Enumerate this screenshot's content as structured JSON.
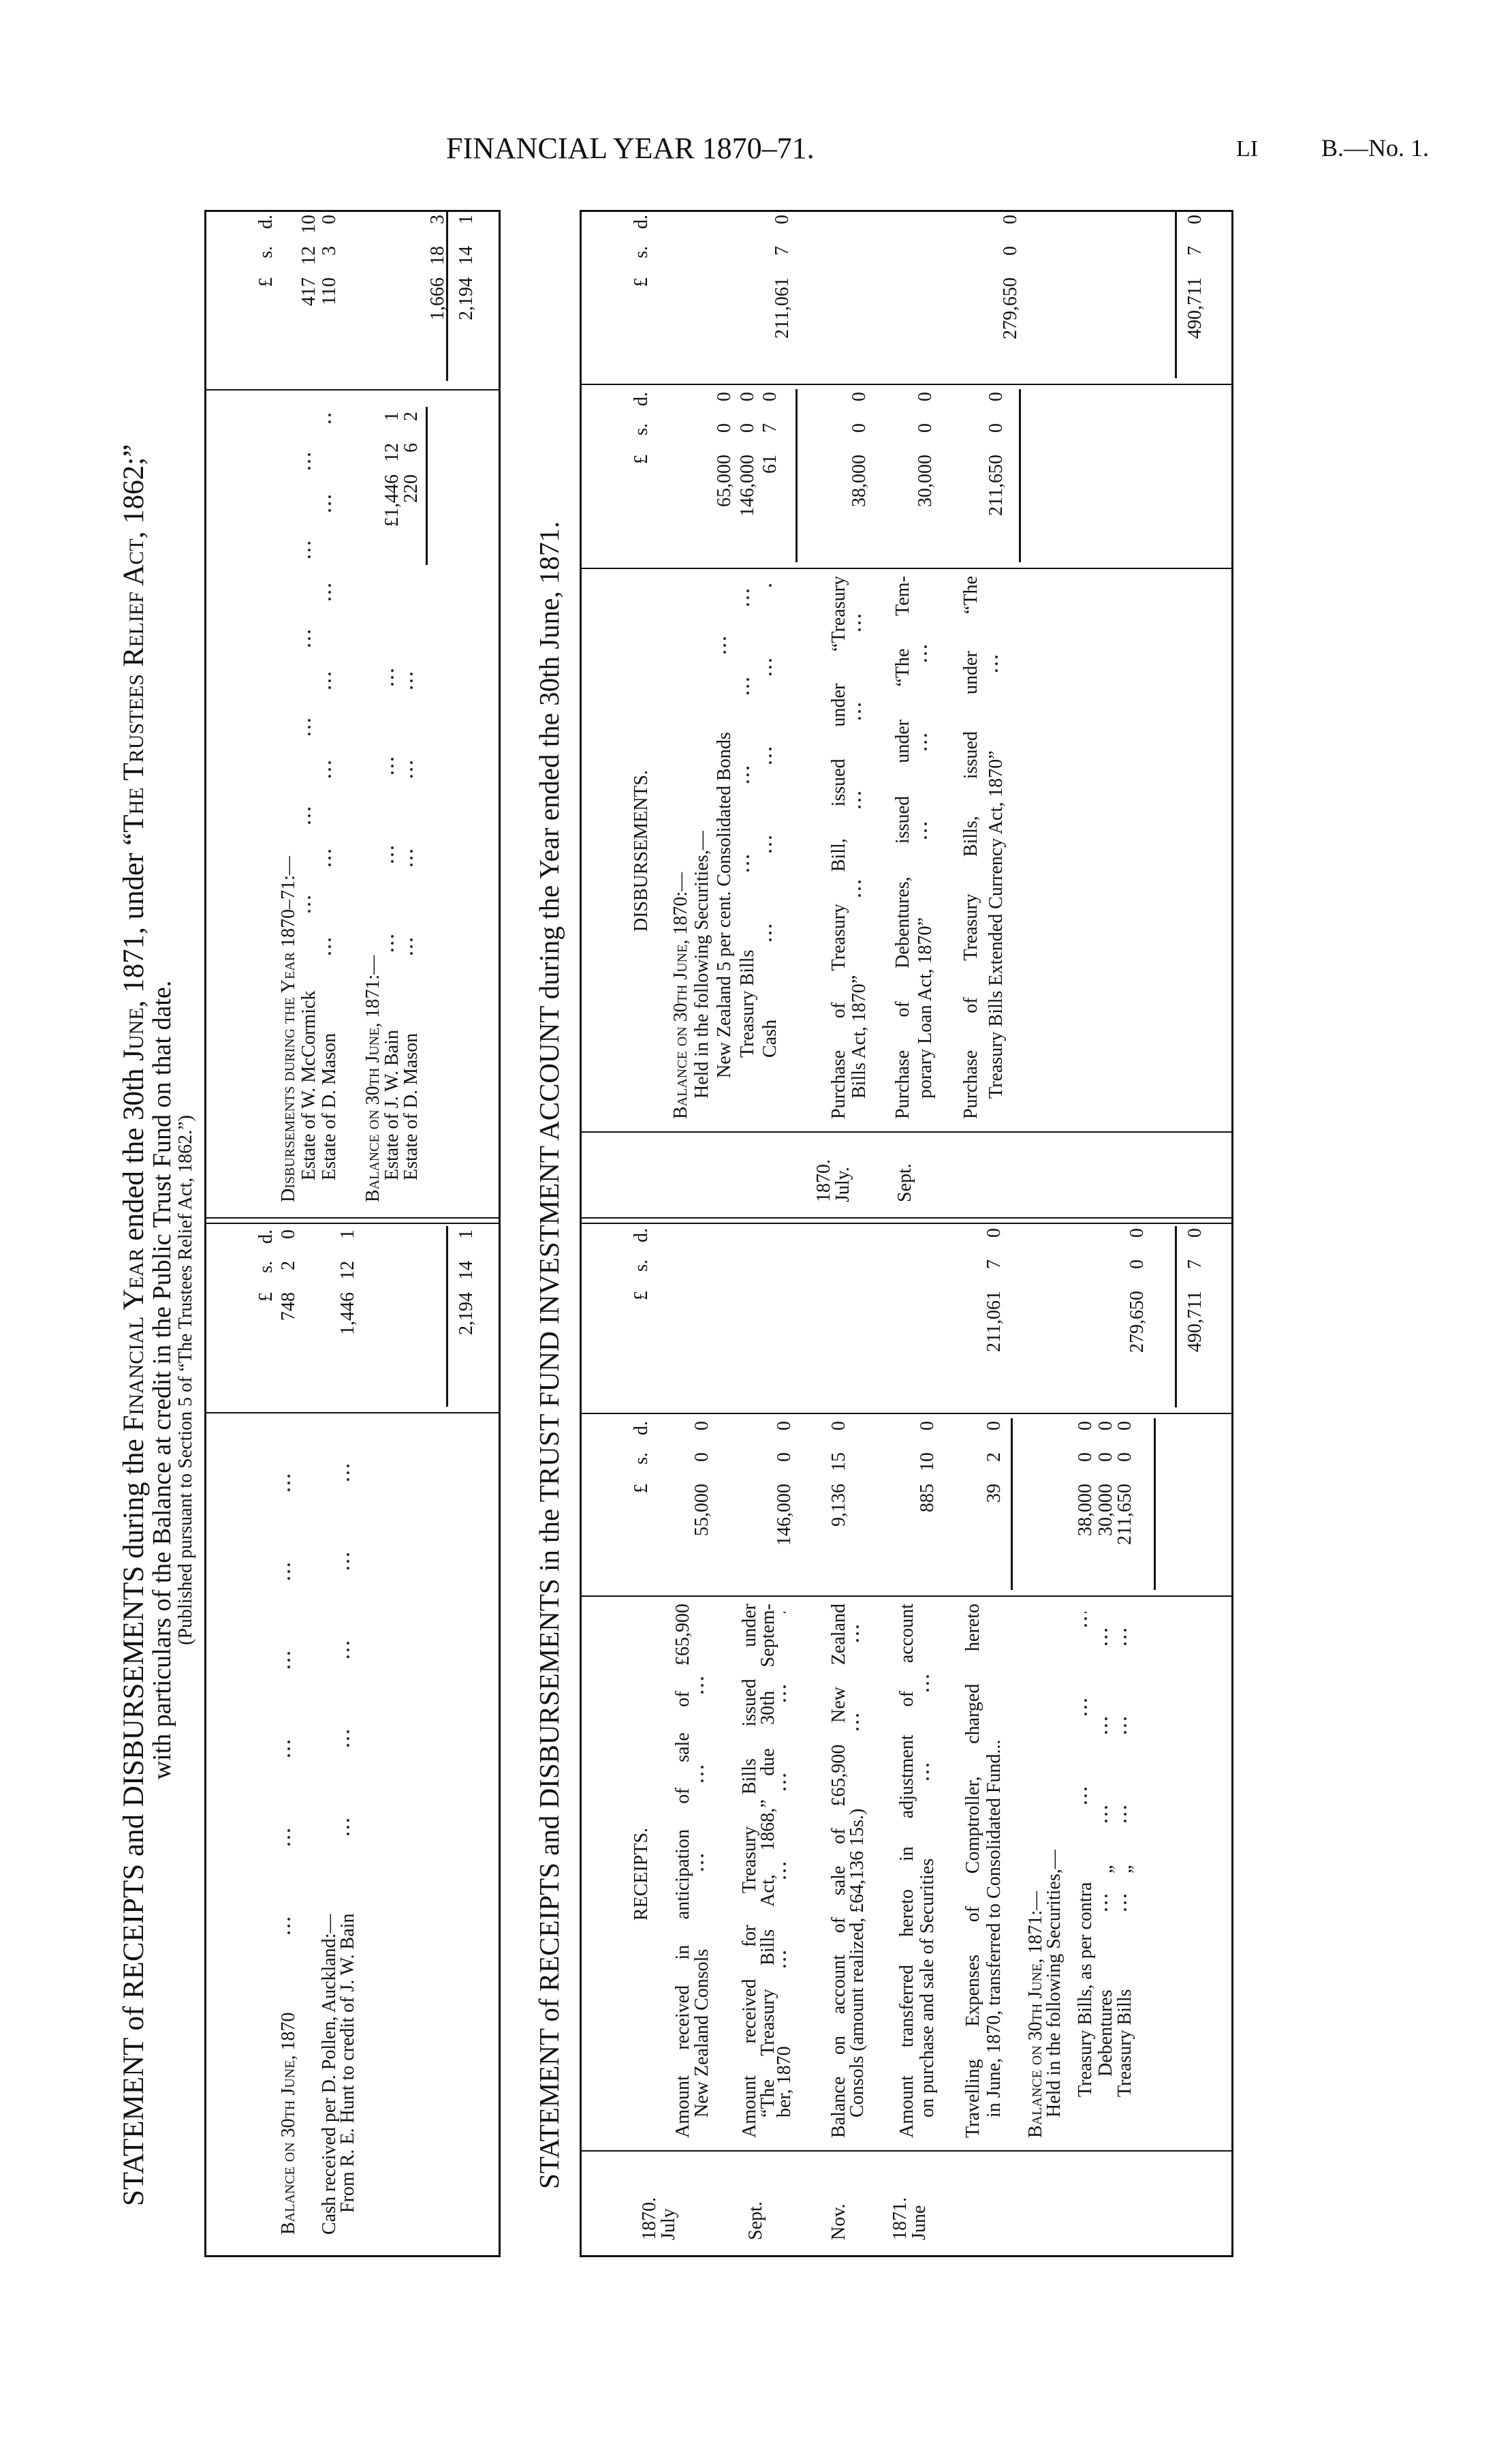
{
  "header": {
    "title": "FINANCIAL YEAR 1870–71.",
    "page_number": "LI",
    "paper_ref": "B.—No. 1."
  },
  "trustees_statement": {
    "title_parts": [
      "STATEMENT of RECEIPTS and DISBURSEMENTS during the ",
      "Financial Year",
      " ended the 30th ",
      "June",
      ", 1871, under “",
      "The Trustees Relief Act",
      ", 1862;”"
    ],
    "subtitle": "with particulars of the Balance at credit in the Public Trust Fund on that date.",
    "note": "(Published pursuant to Section 5 of “The Trustees Relief Act, 1862.”)",
    "money_heads": {
      "l": "£",
      "s": "s.",
      "d": "d."
    },
    "receipts": [
      {
        "label": "Balance on 30th June, 1870",
        "amount": {
          "l": "748",
          "s": "2",
          "d": "0"
        }
      },
      {
        "label": "Cash received per D. Pollen, Auckland:—"
      },
      {
        "label": "From R. E. Hunt to credit of J. W. Bain",
        "amount": {
          "l": "1,446",
          "s": "12",
          "d": "1"
        }
      }
    ],
    "receipts_total": {
      "l": "2,194",
      "s": "14",
      "d": "1"
    },
    "disbursements": [
      {
        "label": "Disbursements during the Year 1870–71:—"
      },
      {
        "label": "Estate of W. McCormick",
        "amount": {
          "l": "417",
          "s": "12",
          "d": "10"
        }
      },
      {
        "label": "Estate of D. Mason",
        "amount": {
          "l": "110",
          "s": "3",
          "d": "0"
        }
      },
      {
        "label": "Balance on 30th June, 1871:—"
      },
      {
        "label": "Estate of J. W. Bain",
        "amount": {
          "l": "£1,446",
          "s": "12",
          "d": "1"
        }
      },
      {
        "label": "Estate of D. Mason",
        "amount": {
          "l": "220",
          "s": "6",
          "d": "2"
        }
      }
    ],
    "balance_subtotal": {
      "l": "1,666",
      "s": "18",
      "d": "3"
    },
    "disbursements_total": {
      "l": "2,194",
      "s": "14",
      "d": "1"
    }
  },
  "investment_statement": {
    "title": "STATEMENT of RECEIPTS and DISBURSEMENTS in the TRUST FUND INVESTMENT ACCOUNT during the Year ended the 30th June, 1871.",
    "money_heads": {
      "l": "£",
      "s": "s.",
      "d": "d."
    },
    "receipts_heading": "RECEIPTS.",
    "disbursements_heading": "DISBURSEMENTS.",
    "receipt_dates": [
      "1870.",
      "July",
      "Sept.",
      "Nov.",
      "1871.",
      "June"
    ],
    "receipts": [
      {
        "lines": [
          "Amount received in anticipation of sale of £65,900",
          "New Zealand Consols"
        ],
        "amount": {
          "l": "55,000",
          "s": "0",
          "d": "0"
        }
      },
      {
        "lines": [
          "Amount received for Treasury Bills issued under",
          "“The Treasury Bills Act, 1868,” due 30th Septem-",
          "ber, 1870"
        ],
        "amount": {
          "l": "146,000",
          "s": "0",
          "d": "0"
        }
      },
      {
        "lines": [
          "Balance on account of sale of £65,900 New Zealand",
          "Consols (amount realized, £64,136 15s.)"
        ],
        "amount": {
          "l": "9,136",
          "s": "15",
          "d": "0"
        }
      },
      {
        "lines": [
          "Amount transferred hereto in adjustment of account",
          "on purchase and sale of Securities"
        ],
        "amount": {
          "l": "885",
          "s": "10",
          "d": "0"
        }
      },
      {
        "lines": [
          "Travelling Expenses of Comptroller, charged hereto",
          "in June, 1870, transferred to Consolidated Fund..."
        ],
        "amount": {
          "l": "39",
          "s": "2",
          "d": "0"
        }
      }
    ],
    "receipts_subtotal": {
      "l": "211,061",
      "s": "7",
      "d": "0"
    },
    "balance": {
      "heading": "Balance on 30th June, 1871:—",
      "subheading": "Held in the following Securities,—",
      "items": [
        {
          "label": "Treasury Bills, as per contra",
          "amount": {
            "l": "38,000",
            "s": "0",
            "d": "0"
          }
        },
        {
          "label": "Debentures",
          "ditto": "„",
          "amount": {
            "l": "30,000",
            "s": "0",
            "d": "0"
          }
        },
        {
          "label": "Treasury Bills",
          "ditto": "„",
          "amount": {
            "l": "211,650",
            "s": "0",
            "d": "0"
          }
        }
      ],
      "total": {
        "l": "279,650",
        "s": "0",
        "d": "0"
      }
    },
    "receipts_total": {
      "l": "490,711",
      "s": "7",
      "d": "0"
    },
    "disbursement_dates": [
      "1870.",
      "July.",
      "Sept."
    ],
    "opening": {
      "heading": "Balance on 30th June, 1870:—",
      "subheading": "Held in the following Securities,—",
      "items": [
        {
          "label": "New Zealand 5 per cent. Consolidated Bonds",
          "amount": {
            "l": "65,000",
            "s": "0",
            "d": "0"
          }
        },
        {
          "label": "Treasury Bills",
          "amount": {
            "l": "146,000",
            "s": "0",
            "d": "0"
          }
        },
        {
          "label": "Cash",
          "amount": {
            "l": "61",
            "s": "7",
            "d": "0"
          }
        }
      ],
      "total": {
        "l": "211,061",
        "s": "7",
        "d": "0"
      }
    },
    "purchases": [
      {
        "lines": [
          "Purchase of Treasury Bill, issued under “Treasury",
          "Bills Act, 1870”"
        ],
        "amount": {
          "l": "38,000",
          "s": "0",
          "d": "0"
        }
      },
      {
        "lines": [
          "Purchase of Debentures, issued under “The Tem-",
          "porary Loan Act, 1870”"
        ],
        "amount": {
          "l": "30,000",
          "s": "0",
          "d": "0"
        }
      },
      {
        "lines": [
          "Purchase of Treasury Bills, issued under “The",
          "Treasury Bills Extended Currency Act, 1870”"
        ],
        "amount": {
          "l": "211,650",
          "s": "0",
          "d": "0"
        }
      }
    ],
    "purchases_total": {
      "l": "279,650",
      "s": "0",
      "d": "0"
    },
    "disbursements_total": {
      "l": "490,711",
      "s": "7",
      "d": "0"
    }
  }
}
